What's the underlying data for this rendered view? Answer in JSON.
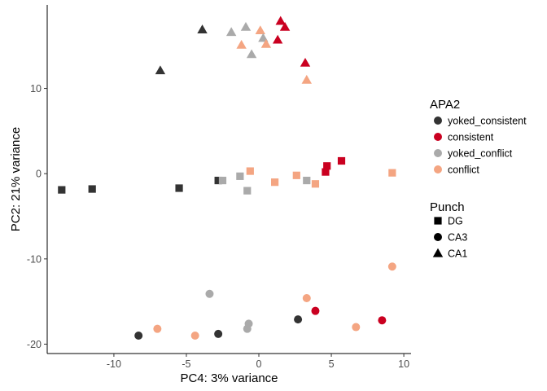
{
  "chart_data": {
    "type": "scatter",
    "xlabel": "PC4: 3% variance",
    "ylabel": "PC2: 21% variance",
    "xlim": [
      -14.6,
      10.5
    ],
    "ylim": [
      -21.1,
      19.8
    ],
    "xticks": [
      -10,
      -5,
      0,
      5,
      10
    ],
    "yticks": [
      -20,
      -10,
      0,
      10
    ],
    "grid": false,
    "legend_position": "right",
    "color_legend": {
      "title": "APA2",
      "entries": [
        {
          "label": "yoked_consistent",
          "color": "#333333"
        },
        {
          "label": "consistent",
          "color": "#ca0020"
        },
        {
          "label": "yoked_conflict",
          "color": "#aaaaaa"
        },
        {
          "label": "conflict",
          "color": "#f4a582"
        }
      ]
    },
    "shape_legend": {
      "title": "Punch",
      "entries": [
        {
          "label": "DG",
          "shape": "square"
        },
        {
          "label": "CA3",
          "shape": "circle"
        },
        {
          "label": "CA1",
          "shape": "triangle"
        }
      ]
    },
    "points": [
      {
        "x": -13.6,
        "y": -1.9,
        "group": "yoked_consistent",
        "shape": "square"
      },
      {
        "x": -11.5,
        "y": -1.8,
        "group": "yoked_consistent",
        "shape": "square"
      },
      {
        "x": -5.5,
        "y": -1.7,
        "group": "yoked_consistent",
        "shape": "square"
      },
      {
        "x": -2.8,
        "y": -0.8,
        "group": "yoked_consistent",
        "shape": "square"
      },
      {
        "x": -2.5,
        "y": -0.8,
        "group": "yoked_conflict",
        "shape": "square"
      },
      {
        "x": -1.3,
        "y": -0.3,
        "group": "yoked_conflict",
        "shape": "square"
      },
      {
        "x": -0.8,
        "y": -2.0,
        "group": "yoked_conflict",
        "shape": "square"
      },
      {
        "x": -0.6,
        "y": 0.3,
        "group": "conflict",
        "shape": "square"
      },
      {
        "x": 1.1,
        "y": -1.0,
        "group": "conflict",
        "shape": "square"
      },
      {
        "x": 2.6,
        "y": -0.2,
        "group": "conflict",
        "shape": "square"
      },
      {
        "x": 3.3,
        "y": -0.8,
        "group": "yoked_conflict",
        "shape": "square"
      },
      {
        "x": 3.9,
        "y": -1.2,
        "group": "conflict",
        "shape": "square"
      },
      {
        "x": 4.6,
        "y": 0.2,
        "group": "consistent",
        "shape": "square"
      },
      {
        "x": 4.7,
        "y": 0.9,
        "group": "consistent",
        "shape": "square"
      },
      {
        "x": 5.7,
        "y": 1.5,
        "group": "consistent",
        "shape": "square"
      },
      {
        "x": 9.2,
        "y": 0.1,
        "group": "conflict",
        "shape": "square"
      },
      {
        "x": -8.3,
        "y": -19.0,
        "group": "yoked_consistent",
        "shape": "circle"
      },
      {
        "x": -7.0,
        "y": -18.2,
        "group": "conflict",
        "shape": "circle"
      },
      {
        "x": -4.4,
        "y": -19.0,
        "group": "conflict",
        "shape": "circle"
      },
      {
        "x": -3.4,
        "y": -14.1,
        "group": "yoked_conflict",
        "shape": "circle"
      },
      {
        "x": -2.8,
        "y": -18.8,
        "group": "yoked_consistent",
        "shape": "circle"
      },
      {
        "x": -0.8,
        "y": -18.2,
        "group": "yoked_conflict",
        "shape": "circle"
      },
      {
        "x": -0.7,
        "y": -17.6,
        "group": "yoked_conflict",
        "shape": "circle"
      },
      {
        "x": 2.7,
        "y": -17.1,
        "group": "yoked_consistent",
        "shape": "circle"
      },
      {
        "x": 3.3,
        "y": -14.6,
        "group": "conflict",
        "shape": "circle"
      },
      {
        "x": 3.9,
        "y": -16.1,
        "group": "consistent",
        "shape": "circle"
      },
      {
        "x": 6.7,
        "y": -18.0,
        "group": "conflict",
        "shape": "circle"
      },
      {
        "x": 8.5,
        "y": -17.2,
        "group": "consistent",
        "shape": "circle"
      },
      {
        "x": 9.2,
        "y": -10.9,
        "group": "conflict",
        "shape": "circle"
      },
      {
        "x": -6.8,
        "y": 12.1,
        "group": "yoked_consistent",
        "shape": "triangle"
      },
      {
        "x": -3.9,
        "y": 16.9,
        "group": "yoked_consistent",
        "shape": "triangle"
      },
      {
        "x": -1.9,
        "y": 16.6,
        "group": "yoked_conflict",
        "shape": "triangle"
      },
      {
        "x": -1.2,
        "y": 15.1,
        "group": "conflict",
        "shape": "triangle"
      },
      {
        "x": -0.9,
        "y": 17.2,
        "group": "yoked_conflict",
        "shape": "triangle"
      },
      {
        "x": -0.5,
        "y": 14.0,
        "group": "yoked_conflict",
        "shape": "triangle"
      },
      {
        "x": 0.1,
        "y": 16.8,
        "group": "conflict",
        "shape": "triangle"
      },
      {
        "x": 0.3,
        "y": 15.9,
        "group": "yoked_conflict",
        "shape": "triangle"
      },
      {
        "x": 0.5,
        "y": 15.2,
        "group": "conflict",
        "shape": "triangle"
      },
      {
        "x": 1.3,
        "y": 15.7,
        "group": "consistent",
        "shape": "triangle"
      },
      {
        "x": 1.5,
        "y": 17.9,
        "group": "consistent",
        "shape": "triangle"
      },
      {
        "x": 1.8,
        "y": 17.2,
        "group": "consistent",
        "shape": "triangle"
      },
      {
        "x": 3.2,
        "y": 13.0,
        "group": "consistent",
        "shape": "triangle"
      },
      {
        "x": 3.3,
        "y": 11.0,
        "group": "conflict",
        "shape": "triangle"
      }
    ]
  }
}
